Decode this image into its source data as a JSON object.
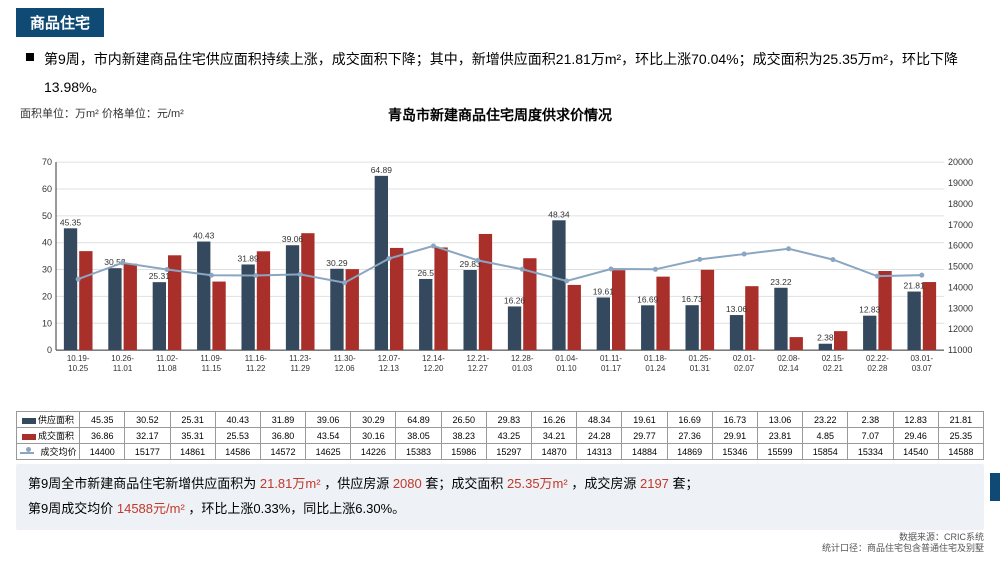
{
  "section_title": "商品住宅",
  "section_bg": "#0f4a75",
  "description": "第9周，市内新建商品住宅供应面积持续上涨，成交面积下降；其中，新增供应面积21.81万m²，环比上涨70.04%；成交面积为25.35万m²，环比下降13.98%。",
  "unit_label": "面积单位：万m² 价格单位：元/m²",
  "chart": {
    "title": "青岛市新建商品住宅周度供求价情况",
    "categories": [
      "10.19-10.25",
      "10.26-11.01",
      "11.02-11.08",
      "11.09-11.15",
      "11.16-11.22",
      "11.23-11.29",
      "11.30-12.06",
      "12.07-12.13",
      "12.14-12.20",
      "12.21-12.27",
      "12.28-01.03",
      "01.04-01.10",
      "01.11-01.17",
      "01.18-01.24",
      "01.25-01.31",
      "02.01-02.07",
      "02.08-02.14",
      "02.15-02.21",
      "02.22-02.28",
      "03.01-03.07"
    ],
    "series_supply": {
      "label": "供应面积",
      "color": "#34495e",
      "values": [
        45.35,
        30.52,
        25.31,
        40.43,
        31.89,
        39.06,
        30.29,
        64.89,
        26.5,
        29.83,
        16.26,
        48.34,
        19.61,
        16.69,
        16.73,
        13.06,
        23.22,
        2.38,
        12.83,
        21.81
      ],
      "show_labels_at": [
        0,
        1,
        2,
        3,
        4,
        5,
        6,
        7,
        8,
        9,
        10,
        11,
        12,
        13,
        14,
        15,
        16,
        17,
        18,
        19
      ]
    },
    "series_deal": {
      "label": "成交面积",
      "color": "#a92f2a",
      "values": [
        36.86,
        32.17,
        35.31,
        25.53,
        36.8,
        43.54,
        30.16,
        38.05,
        38.23,
        43.25,
        34.21,
        24.28,
        29.77,
        27.36,
        29.91,
        23.81,
        4.85,
        7.07,
        29.46,
        25.35
      ]
    },
    "series_price": {
      "label": "成交均价",
      "color": "#8aa6c1",
      "values": [
        14400,
        15177,
        14861,
        14586,
        14572,
        14625,
        14226,
        15383,
        15986,
        15297,
        14870,
        14313,
        14884,
        14869,
        15346,
        15599,
        15854,
        15334,
        14540,
        14588
      ]
    },
    "left_axis": {
      "min": 0,
      "max": 70,
      "step": 10
    },
    "right_axis": {
      "min": 11000,
      "max": 20000,
      "step": 1000
    },
    "grid_color": "#e0e0e0",
    "axis_color": "#333",
    "plot_bg": "#ffffff"
  },
  "table": {
    "row1_label": "供应面积",
    "row2_label": "成交面积",
    "row3_label": "成交均价"
  },
  "summary_line1_a": "第9周全市新建商品住宅新增供应面积为",
  "summary_hl1": "21.81万m²",
  "summary_line1_b": "，供应房源",
  "summary_hl2": "2080",
  "summary_line1_c": "套；成交面积",
  "summary_hl3": "25.35万m²",
  "summary_line1_d": "，成交房源",
  "summary_hl4": "2197",
  "summary_line1_e": "套；",
  "summary_line2_a": "第9周成交均价",
  "summary_hl5": "14588元/m²",
  "summary_line2_b": "，环比上涨0.33%，同比上涨6.30%。",
  "footer1": "数据来源：CRIC系统",
  "footer2": "统计口径：商品住宅包含普通住宅及别墅",
  "accent_color": "#0f4a75"
}
